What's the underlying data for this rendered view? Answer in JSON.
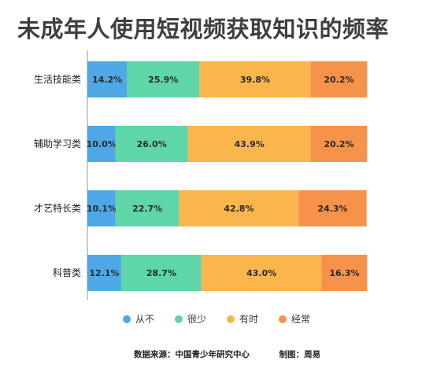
{
  "title": "未成年人使用短视频获取知识的频率",
  "legend_labels": [
    "从不",
    "很少",
    "有时",
    "经常"
  ],
  "colors": [
    "#4fa8e6",
    "#5ed6a8",
    "#fbb54d",
    "#f7924a"
  ],
  "footer": {
    "source": "数据来源：中国青少年研究中心",
    "credit": "制图：周易"
  },
  "chart_data": {
    "type": "bar",
    "orientation": "horizontal",
    "stacked": true,
    "categories": [
      "生活技能类",
      "辅助学习类",
      "才艺特长类",
      "科普类"
    ],
    "series": [
      {
        "name": "从不",
        "values": [
          14.2,
          10.0,
          10.1,
          12.1
        ]
      },
      {
        "name": "很少",
        "values": [
          25.9,
          26.0,
          22.7,
          28.7
        ]
      },
      {
        "name": "有时",
        "values": [
          39.8,
          43.9,
          42.8,
          43.0
        ]
      },
      {
        "name": "经常",
        "values": [
          20.2,
          20.2,
          24.3,
          16.3
        ]
      }
    ],
    "value_labels": [
      [
        "14.2%",
        "25.9%",
        "39.8%",
        "20.2%"
      ],
      [
        "10.0%",
        "26.0%",
        "43.9%",
        "20.2%"
      ],
      [
        "10.1%",
        "22.7%",
        "42.8%",
        "24.3%"
      ],
      [
        "12.1%",
        "28.7%",
        "43.0%",
        "16.3%"
      ]
    ],
    "xlim": [
      0,
      100
    ],
    "grid": false,
    "legend_position": "bottom"
  }
}
